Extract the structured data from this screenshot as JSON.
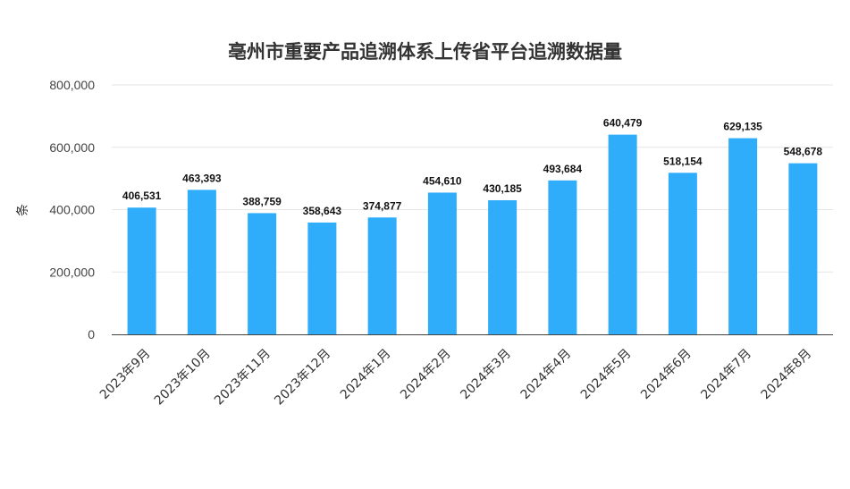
{
  "chart_data": {
    "type": "bar",
    "title": "亳州市重要产品追溯体系上传省平台追溯数据量",
    "xlabel": "",
    "ylabel": "条",
    "ylim": [
      0,
      800000
    ],
    "yticks": [
      0,
      200000,
      400000,
      600000,
      800000
    ],
    "ytick_labels": [
      "0",
      "200,000",
      "400,000",
      "600,000",
      "800,000"
    ],
    "grid": true,
    "legend": "none",
    "bar_color": "#2fadfa",
    "categories": [
      "2023年9月",
      "2023年10月",
      "2023年11月",
      "2023年12月",
      "2024年1月",
      "2024年2月",
      "2024年3月",
      "2024年4月",
      "2024年5月",
      "2024年6月",
      "2024年7月",
      "2024年8月"
    ],
    "values": [
      406531,
      463393,
      388759,
      358643,
      374877,
      454610,
      430185,
      493684,
      640479,
      518154,
      629135,
      548678
    ],
    "value_labels": [
      "406,531",
      "463,393",
      "388,759",
      "358,643",
      "374,877",
      "454,610",
      "430,185",
      "493,684",
      "640,479",
      "518,154",
      "629,135",
      "548,678"
    ]
  }
}
